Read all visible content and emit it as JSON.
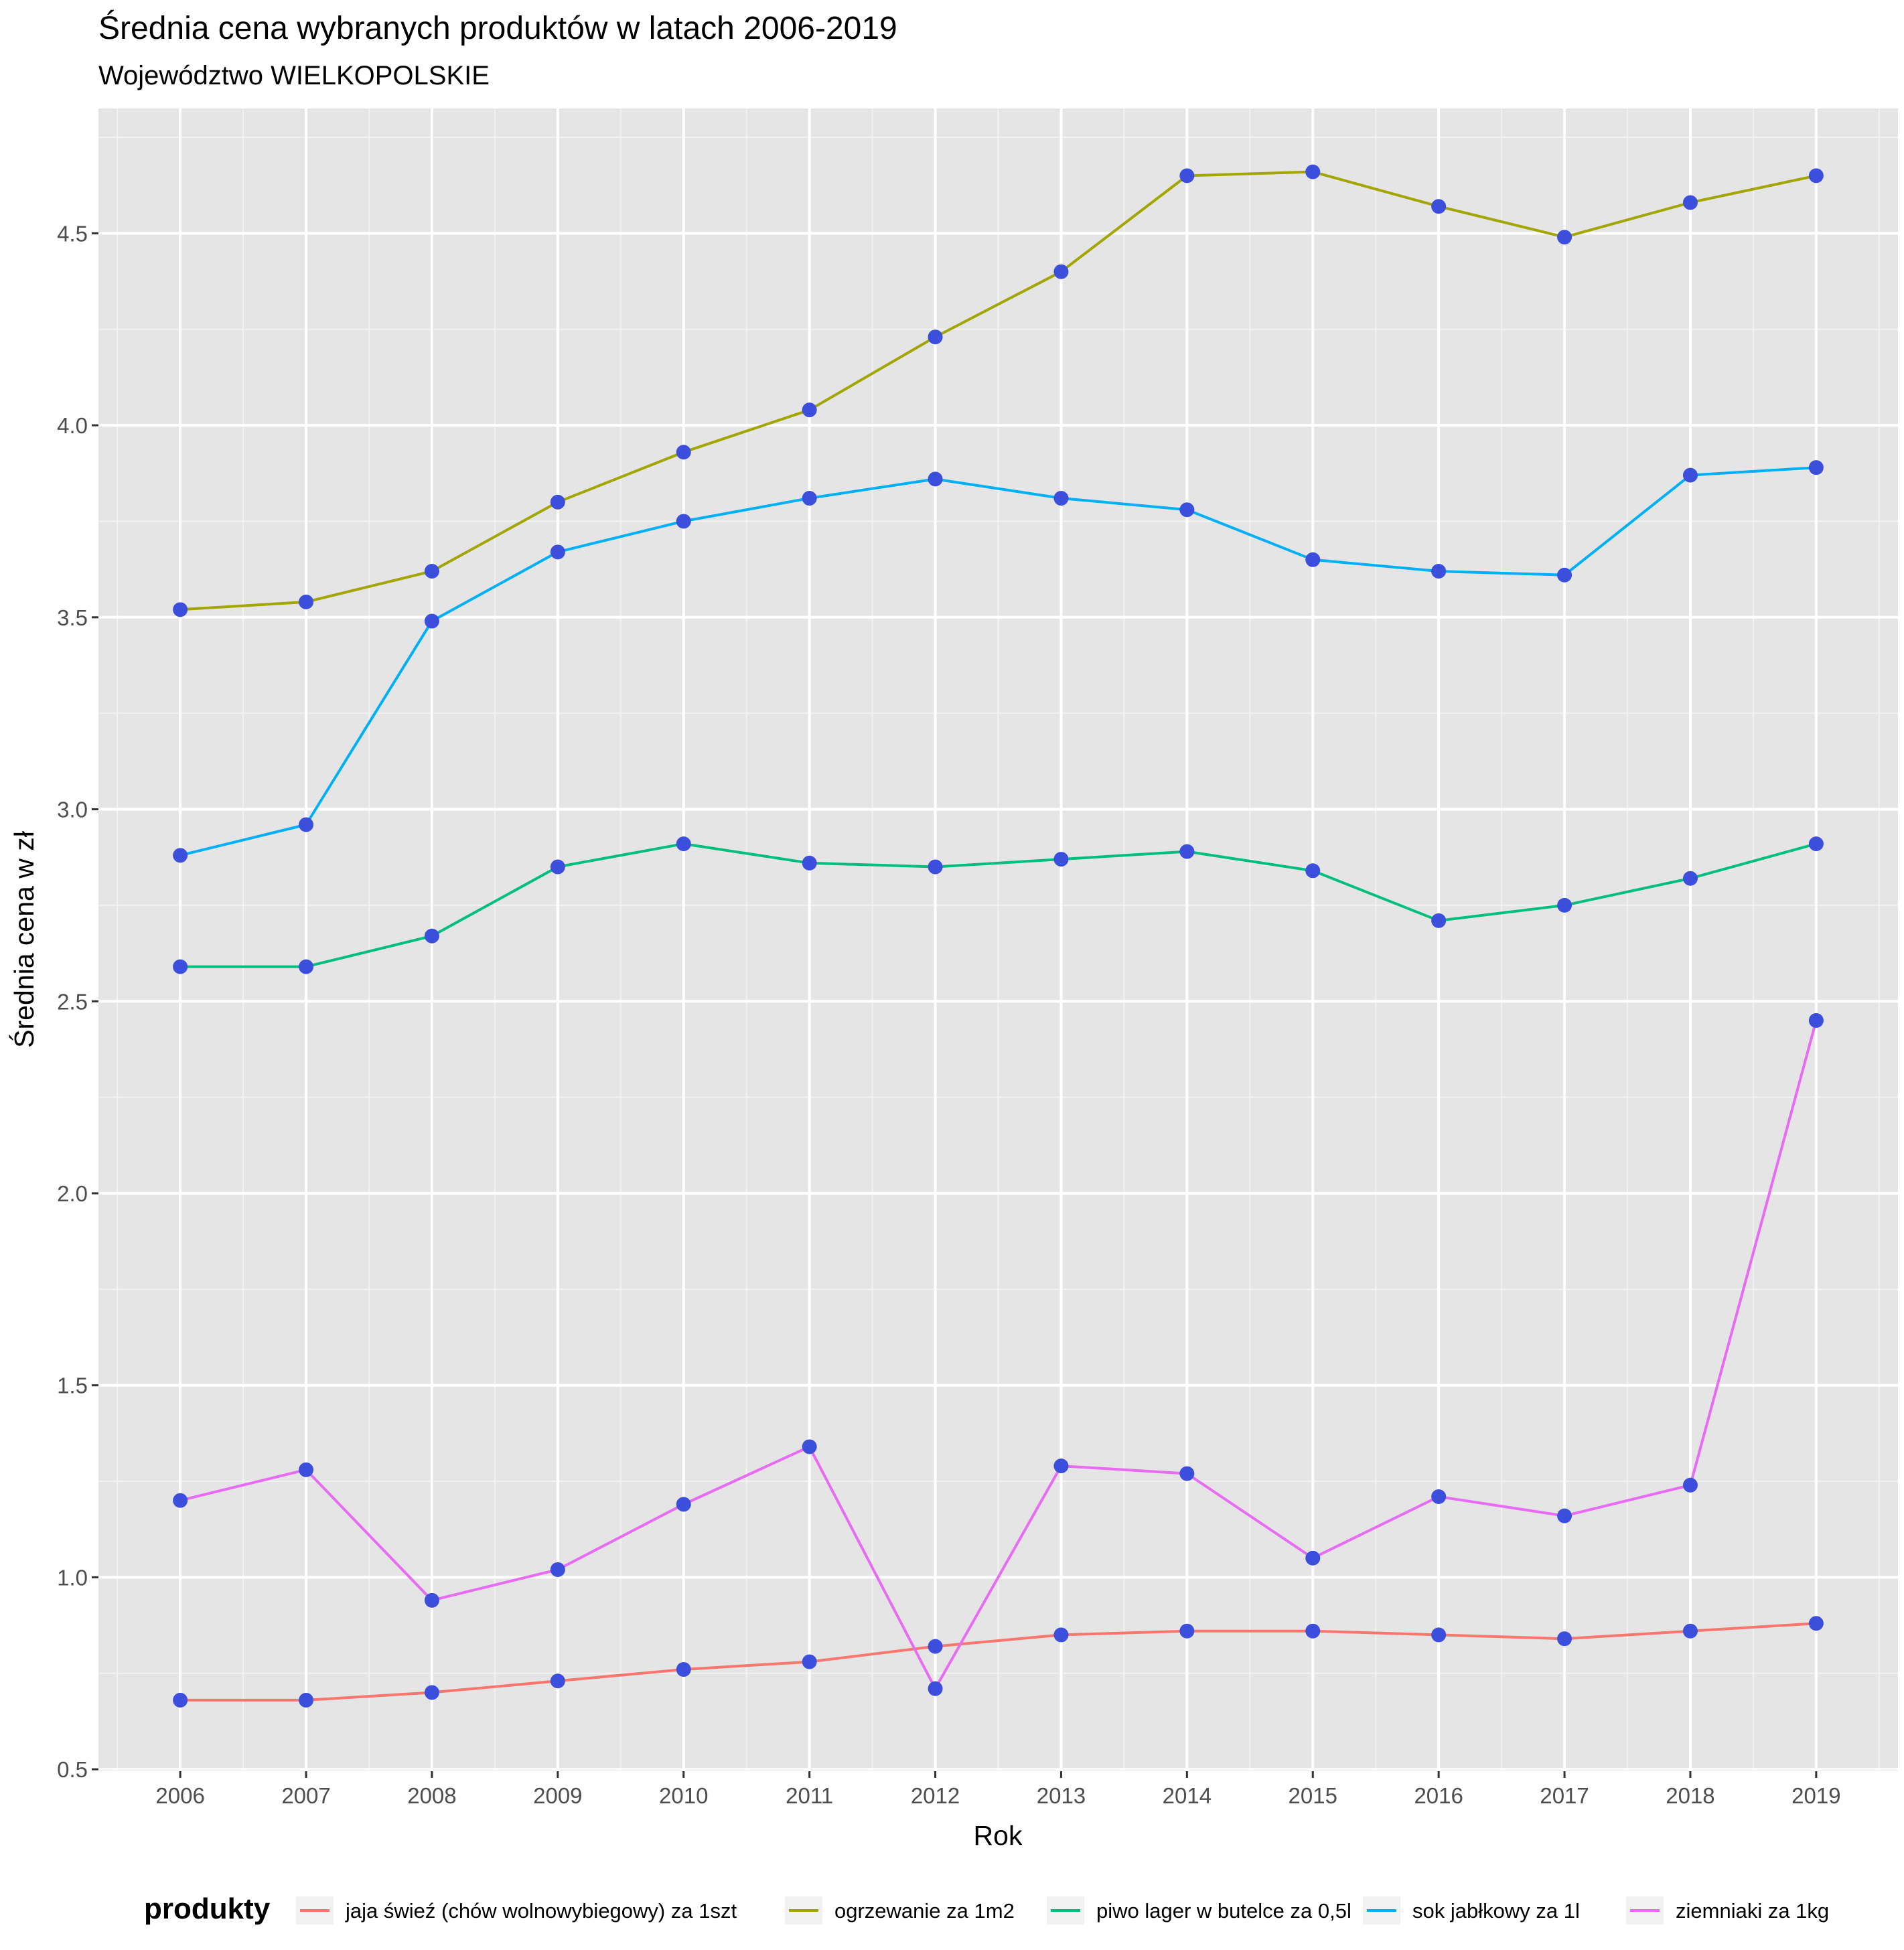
{
  "chart_data": {
    "type": "line",
    "title": "Średnia cena  wybranych produktów w latach 2006-2019",
    "subtitle": "Województwo WIELKOPOLSKIE",
    "xlabel": "Rok",
    "ylabel": "Średnia cena w zł",
    "x": [
      2006,
      2007,
      2008,
      2009,
      2010,
      2011,
      2012,
      2013,
      2014,
      2015,
      2016,
      2017,
      2018,
      2019
    ],
    "xlim": [
      2005.35,
      2019.65
    ],
    "ylim": [
      0.495,
      4.825
    ],
    "y_ticks": [
      "0.5",
      "1.0",
      "1.5",
      "2.0",
      "2.5",
      "3.0",
      "3.5",
      "4.0",
      "4.5"
    ],
    "x_ticks": [
      "2006",
      "2007",
      "2008",
      "2009",
      "2010",
      "2011",
      "2012",
      "2013",
      "2014",
      "2015",
      "2016",
      "2017",
      "2018",
      "2019"
    ],
    "grid": true,
    "point_color": "#3b4fdc",
    "panel_color": "#e5e5e5",
    "legend": {
      "title": "produkty",
      "position": "bottom"
    },
    "series": [
      {
        "name": "jaja świeź (chów wolnowybiegowy) za 1szt",
        "color": "#f8766d",
        "values": [
          0.68,
          0.68,
          0.7,
          0.73,
          0.76,
          0.78,
          0.82,
          0.85,
          0.86,
          0.86,
          0.85,
          0.84,
          0.86,
          0.88
        ]
      },
      {
        "name": "ogrzewanie za 1m2",
        "color": "#a3a500",
        "values": [
          3.52,
          3.54,
          3.62,
          3.8,
          3.93,
          4.04,
          4.23,
          4.4,
          4.65,
          4.66,
          4.57,
          4.49,
          4.58,
          4.65
        ]
      },
      {
        "name": "piwo lager w butelce za 0,5l",
        "color": "#00bf7d",
        "values": [
          2.59,
          2.59,
          2.67,
          2.85,
          2.91,
          2.86,
          2.85,
          2.87,
          2.89,
          2.84,
          2.71,
          2.75,
          2.82,
          2.91
        ]
      },
      {
        "name": "sok jabłkowy za 1l",
        "color": "#00b0f6",
        "values": [
          2.88,
          2.96,
          3.49,
          3.67,
          3.75,
          3.81,
          3.86,
          3.81,
          3.78,
          3.65,
          3.62,
          3.61,
          3.87,
          3.89
        ]
      },
      {
        "name": "ziemniaki za 1kg",
        "color": "#e76bf3",
        "values": [
          1.2,
          1.28,
          0.94,
          1.02,
          1.19,
          1.34,
          0.71,
          1.29,
          1.27,
          1.05,
          1.21,
          1.16,
          1.24,
          2.45
        ]
      }
    ]
  }
}
